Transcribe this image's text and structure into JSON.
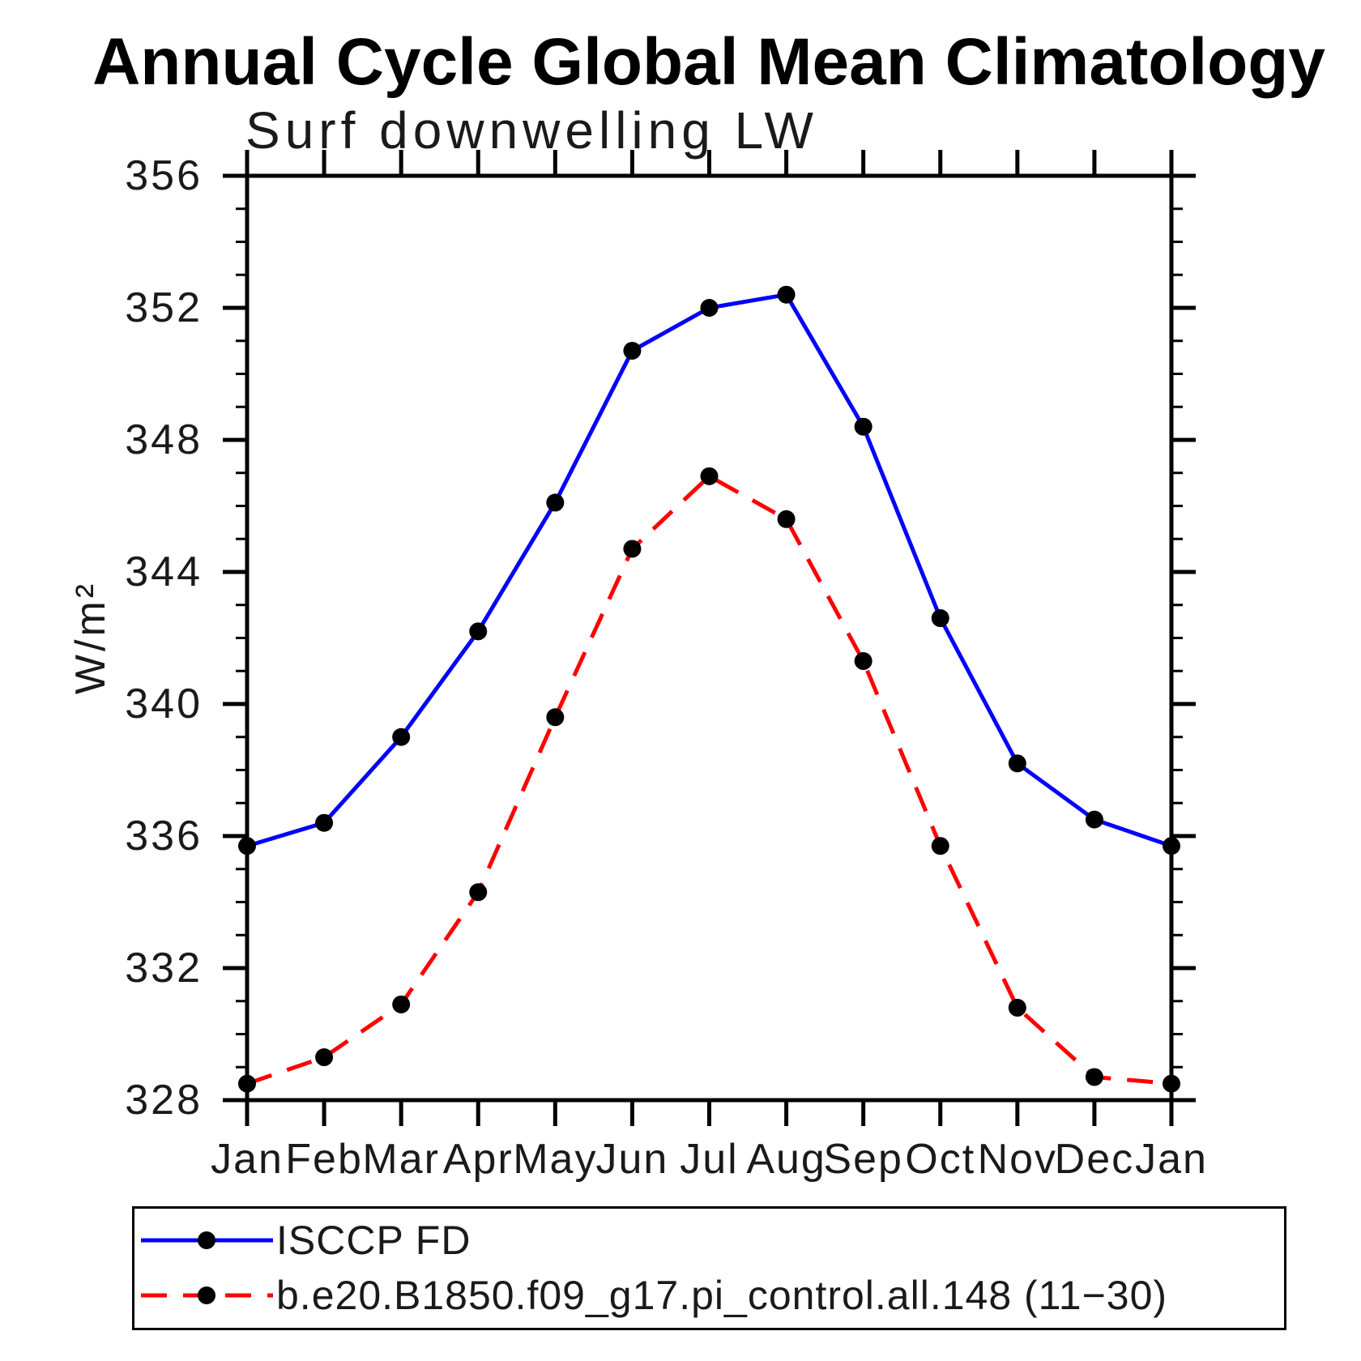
{
  "header": {
    "title": "Annual Cycle Global Mean Climatology"
  },
  "chart_data": {
    "type": "line",
    "title": "Annual Cycle Global Mean Climatology",
    "subtitle": "Surf downwelling LW",
    "ylabel": "W/m²",
    "x_categories": [
      "Jan",
      "Feb",
      "Mar",
      "Apr",
      "May",
      "Jun",
      "Jul",
      "Aug",
      "Sep",
      "Oct",
      "Nov",
      "Dec",
      "Jan"
    ],
    "ylim": [
      328,
      356
    ],
    "y_major_ticks": [
      328,
      332,
      336,
      340,
      344,
      348,
      352,
      356
    ],
    "y_minor_step": 1,
    "grid": false,
    "legend_position": "bottom-left",
    "axis_color": "#000000",
    "marker_color": "#000000",
    "series": [
      {
        "name": "ISCCP FD",
        "color": "#0000ff",
        "style": "solid",
        "marker": "circle",
        "values": [
          335.7,
          336.4,
          339.0,
          342.2,
          346.1,
          350.7,
          352.0,
          352.4,
          348.4,
          342.6,
          338.2,
          336.5,
          335.7
        ]
      },
      {
        "name": "b.e20.B1850.f09_g17.pi_control.all.148 (11−30)",
        "color": "#ff0000",
        "style": "dashed",
        "marker": "circle",
        "values": [
          328.5,
          329.3,
          330.9,
          334.3,
          339.6,
          344.7,
          346.9,
          345.6,
          341.3,
          335.7,
          330.8,
          328.7,
          328.5
        ]
      }
    ]
  }
}
